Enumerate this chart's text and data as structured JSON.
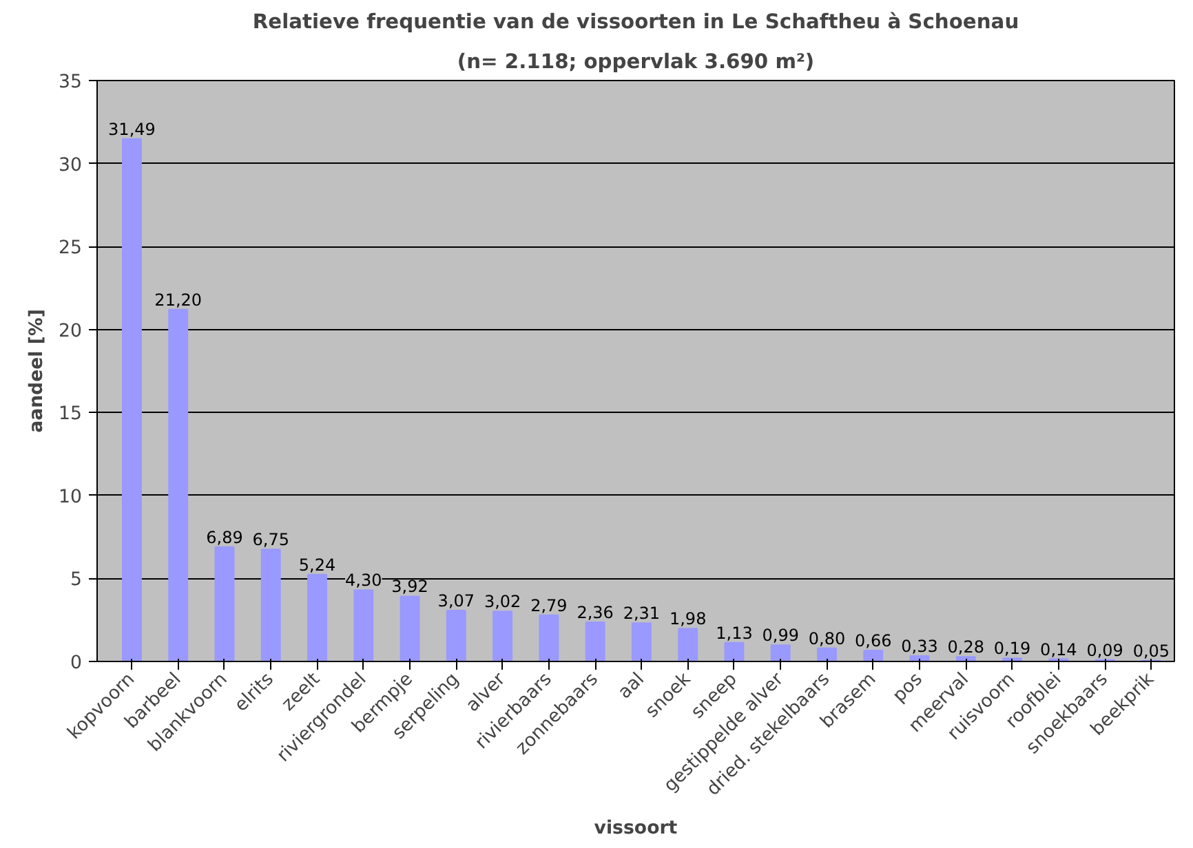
{
  "chart_data": {
    "type": "bar",
    "title": "Relatieve frequentie van de vissoorten in Le Schaftheu à Schoenau",
    "subtitle": "(n= 2.118; oppervlak 3.690 m²)",
    "xlabel": "vissoort",
    "ylabel": "aandeel [%]",
    "categories": [
      "kopvoorn",
      "barbeel",
      "blankvoorn",
      "elrits",
      "zeelt",
      "riviergrondel",
      "bermpje",
      "serpeling",
      "alver",
      "rivierbaars",
      "zonnebaars",
      "aal",
      "snoek",
      "sneep",
      "gestippelde alver",
      "dried. stekelbaars",
      "brasem",
      "pos",
      "meerval",
      "ruisvoorn",
      "roofblei",
      "snoekbaars",
      "beekprik"
    ],
    "values": [
      31.49,
      21.2,
      6.89,
      6.75,
      5.24,
      4.3,
      3.92,
      3.07,
      3.02,
      2.79,
      2.36,
      2.31,
      1.98,
      1.13,
      0.99,
      0.8,
      0.66,
      0.33,
      0.28,
      0.19,
      0.14,
      0.09,
      0.05
    ],
    "value_labels": [
      "31,49",
      "21,20",
      "6,89",
      "6,75",
      "5,24",
      "4,30",
      "3,92",
      "3,07",
      "3,02",
      "2,79",
      "2,36",
      "2,31",
      "1,98",
      "1,13",
      "0,99",
      "0,80",
      "0,66",
      "0,33",
      "0,28",
      "0,19",
      "0,14",
      "0,09",
      "0,05"
    ],
    "color": "#9999ff",
    "ylim": [
      0,
      35
    ],
    "yticks": [
      0,
      5,
      10,
      15,
      20,
      25,
      30,
      35
    ],
    "grid": "y"
  }
}
